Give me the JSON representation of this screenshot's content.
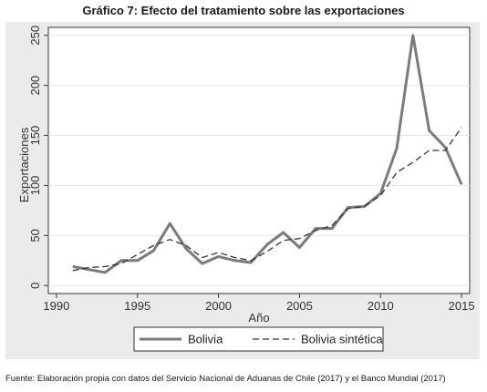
{
  "chart_title": "Gráfico 7: Efecto del tratamiento sobre las exportaciones",
  "source_note": "Fuente: Elaboración propia con datos del Servicio Nacional de Aduanas de Chile (2017) y el Banco Mundial (2017)",
  "colors": {
    "panel_background": "#ebebeb",
    "plot_background": "#ffffff",
    "gridline": "#e6e6e6",
    "bolivia_line": "#7b7b7b",
    "synthetic_line": "#333333"
  },
  "chart_data": {
    "type": "line",
    "title": "Gráfico 7: Efecto del tratamiento sobre las exportaciones",
    "xlabel": "Año",
    "ylabel": "Exportaciones",
    "xlim": [
      1989.5,
      2015.5
    ],
    "ylim": [
      -8,
      258
    ],
    "x_ticks": [
      1990,
      1995,
      2000,
      2005,
      2010,
      2015
    ],
    "y_ticks": [
      0,
      50,
      100,
      150,
      200,
      250
    ],
    "grid": true,
    "legend_position": "bottom",
    "x": [
      1991,
      1992,
      1993,
      1994,
      1995,
      1996,
      1997,
      1998,
      1999,
      2000,
      2001,
      2002,
      2003,
      2004,
      2005,
      2006,
      2007,
      2008,
      2009,
      2010,
      2011,
      2012,
      2013,
      2014,
      2015
    ],
    "series": [
      {
        "name": "Bolivia",
        "style": "solid",
        "values": [
          19,
          16,
          13,
          25,
          25,
          35,
          62,
          37,
          22,
          29,
          25,
          23,
          41,
          53,
          38,
          57,
          57,
          78,
          79,
          92,
          137,
          250,
          155,
          138,
          101
        ]
      },
      {
        "name": "Bolivia sintética",
        "style": "dashed",
        "values": [
          15,
          18,
          19,
          22,
          31,
          40,
          46,
          40,
          28,
          33,
          28,
          25,
          34,
          45,
          47,
          55,
          60,
          77,
          79,
          90,
          113,
          123,
          135,
          135,
          158
        ]
      }
    ]
  }
}
